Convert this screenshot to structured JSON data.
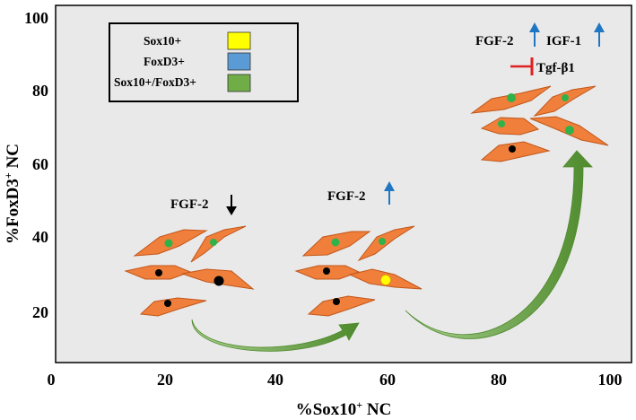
{
  "axes": {
    "xlabel": "%Sox10",
    "xlabel_sup": "+",
    "xlabel_suffix": " NC",
    "ylabel": "%FoxD3",
    "ylabel_sup": "+",
    "ylabel_suffix": " NC",
    "xticks": [
      "0",
      "20",
      "40",
      "60",
      "80",
      "100"
    ],
    "yticks": [
      "20",
      "40",
      "60",
      "80",
      "100"
    ]
  },
  "legend": {
    "items": [
      {
        "label": "Sox10+",
        "color": "#ffff00"
      },
      {
        "label": "FoxD3+",
        "color": "#5b9bd5"
      },
      {
        "label": "Sox10+/FoxD3+",
        "color": "#70ad47"
      }
    ]
  },
  "annotations": {
    "group1": {
      "factor": "FGF-2",
      "direction": "down"
    },
    "group2": {
      "factor": "FGF-2",
      "direction": "up"
    },
    "group3": {
      "factor1": "FGF-2",
      "factor2": "IGF-1",
      "inhibited": "Tgf-β1"
    }
  },
  "colors": {
    "cell_fill": "#ef7f3a",
    "panel_bg": "#e9e9e9",
    "arrow_green": "#5f9e37",
    "up_arrow": "#1f77c4",
    "inhibit": "#e02020",
    "nucleus_green": "#2fb24a",
    "nucleus_black": "#000000",
    "nucleus_yellow": "#ffff00"
  }
}
